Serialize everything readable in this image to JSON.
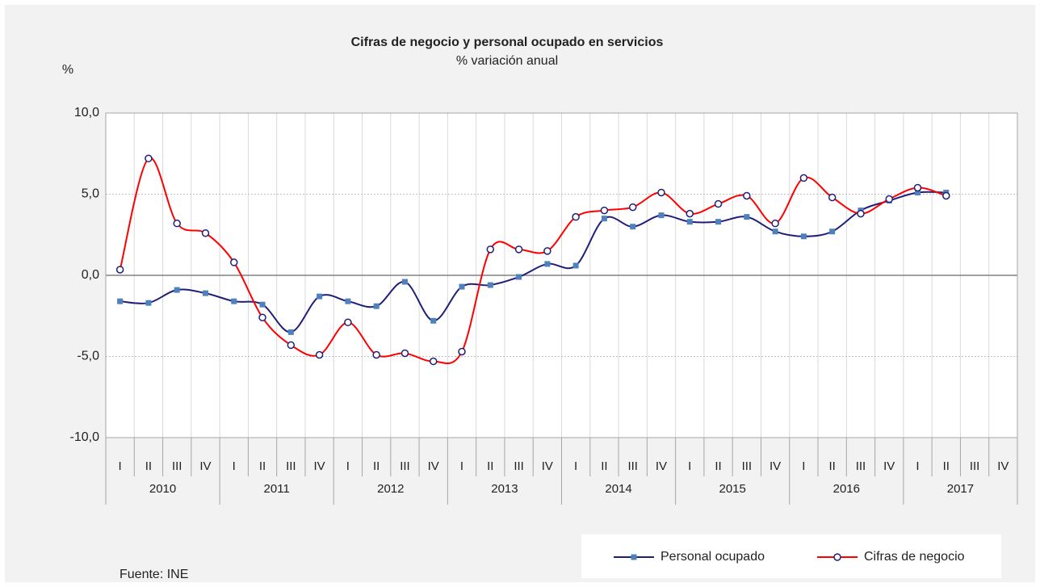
{
  "chart_data": {
    "type": "line",
    "title": "Cifras de negocio y personal ocupado en servicios",
    "subtitle": "% variación anual",
    "y_label": "%",
    "source": "Fuente: INE",
    "categories": [
      "I",
      "II",
      "III",
      "IV",
      "I",
      "II",
      "III",
      "IV",
      "I",
      "II",
      "III",
      "IV",
      "I",
      "II",
      "III",
      "IV",
      "I",
      "II",
      "III",
      "IV",
      "I",
      "II",
      "III",
      "IV",
      "I",
      "II",
      "III",
      "IV",
      "I",
      "II",
      "III",
      "IV"
    ],
    "groups": [
      "2010",
      "2011",
      "2012",
      "2013",
      "2014",
      "2015",
      "2016",
      "2017"
    ],
    "series": [
      {
        "name": "Personal ocupado",
        "color": "#1f1f7a",
        "marker": "square",
        "marker_color": "#4f81bd",
        "values": [
          -1.6,
          -1.7,
          -0.9,
          -1.1,
          -1.6,
          -1.8,
          -3.5,
          -1.3,
          -1.6,
          -1.9,
          -0.4,
          -2.8,
          -0.7,
          -0.6,
          -0.1,
          0.7,
          0.6,
          3.5,
          3.0,
          3.7,
          3.3,
          3.3,
          3.6,
          2.7,
          2.4,
          2.7,
          4.0,
          4.6,
          5.1,
          5.1,
          null,
          null
        ]
      },
      {
        "name": "Cifras de negocio",
        "color": "#ff0000",
        "marker": "circle",
        "marker_color": "#1f1f7a",
        "values": [
          0.35,
          7.2,
          3.2,
          2.6,
          0.8,
          -2.6,
          -4.3,
          -4.9,
          -2.9,
          -4.9,
          -4.8,
          -5.3,
          -4.7,
          1.6,
          1.6,
          1.5,
          3.6,
          4.0,
          4.2,
          5.1,
          3.8,
          4.4,
          4.9,
          3.2,
          6.0,
          4.8,
          3.8,
          4.7,
          5.4,
          4.9,
          null,
          null
        ]
      }
    ],
    "ylim": [
      -10,
      10
    ],
    "yticks": [
      {
        "value": -10,
        "label": "-10,0"
      },
      {
        "value": -5,
        "label": "-5,0"
      },
      {
        "value": 0,
        "label": "0,0"
      },
      {
        "value": 5,
        "label": "5,0"
      },
      {
        "value": 10,
        "label": "10,0"
      }
    ],
    "grid": true,
    "smooth": true,
    "legend": "bottom-right"
  }
}
